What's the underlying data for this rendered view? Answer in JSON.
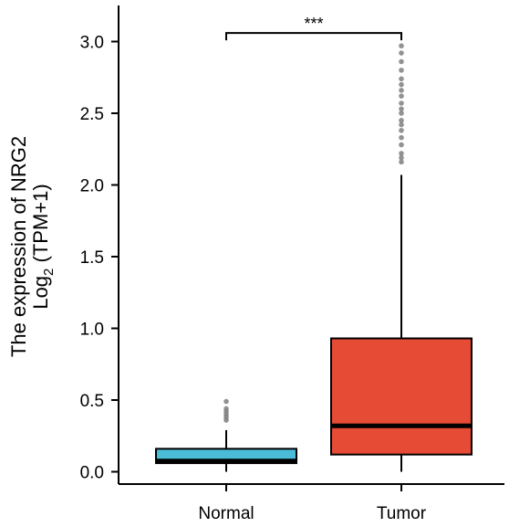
{
  "chart_data": {
    "type": "box",
    "ylabel_line1": "The expression of NRG2",
    "ylabel_line2_prefix": "Log",
    "ylabel_line2_sub": "2",
    "ylabel_line2_suffix": " (TPM+1)",
    "ylim": [
      -0.05,
      3.22
    ],
    "yticks": [
      0.0,
      0.5,
      1.0,
      1.5,
      2.0,
      2.5,
      3.0
    ],
    "ytick_labels": [
      "0.0",
      "0.5",
      "1.0",
      "1.5",
      "2.0",
      "2.5",
      "3.0"
    ],
    "categories": [
      "Normal",
      "Tumor"
    ],
    "boxes": [
      {
        "category": "Normal",
        "color": "#4BBCD8",
        "whisker_low": 0.0,
        "q1": 0.06,
        "median": 0.075,
        "q3": 0.16,
        "whisker_high": 0.29,
        "outliers": [
          0.36,
          0.38,
          0.4,
          0.42,
          0.44,
          0.49
        ]
      },
      {
        "category": "Tumor",
        "color": "#E64B35",
        "whisker_low": 0.0,
        "q1": 0.12,
        "median": 0.32,
        "q3": 0.93,
        "whisker_high": 2.07,
        "outliers": [
          2.16,
          2.19,
          2.22,
          2.28,
          2.33,
          2.38,
          2.42,
          2.45,
          2.5,
          2.53,
          2.57,
          2.62,
          2.66,
          2.7,
          2.74,
          2.8,
          2.86,
          2.92,
          2.97
        ]
      }
    ],
    "significance": {
      "label": "***",
      "between": [
        "Normal",
        "Tumor"
      ],
      "y": 3.06
    },
    "outlier_color": "#7F7F7F",
    "grid": false,
    "legend": "none"
  }
}
